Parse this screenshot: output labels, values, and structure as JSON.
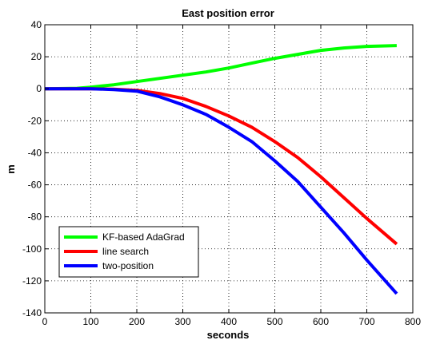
{
  "chart_data": {
    "type": "line",
    "title": "East position error",
    "xlabel": "seconds",
    "ylabel": "m",
    "xlim": [
      0,
      800
    ],
    "ylim": [
      -140,
      40
    ],
    "xticks": [
      0,
      100,
      200,
      300,
      400,
      500,
      600,
      700,
      800
    ],
    "yticks": [
      40,
      20,
      0,
      -20,
      -40,
      -60,
      -80,
      -100,
      -120,
      -140
    ],
    "grid": true,
    "legend_position": "lower-left",
    "series": [
      {
        "name": "KF-based AdaGrad",
        "color": "#00ff00",
        "x": [
          0,
          70,
          100,
          150,
          200,
          250,
          300,
          350,
          400,
          450,
          500,
          550,
          600,
          650,
          700,
          765
        ],
        "y": [
          0,
          0.3,
          1,
          2.5,
          4.5,
          6.5,
          8.5,
          10.5,
          13,
          16,
          19,
          21.5,
          24,
          25.5,
          26.5,
          27
        ]
      },
      {
        "name": "line search",
        "color": "#ff0000",
        "x": [
          0,
          100,
          150,
          200,
          250,
          300,
          350,
          400,
          450,
          500,
          550,
          600,
          650,
          700,
          765
        ],
        "y": [
          0,
          0,
          -0.3,
          -1,
          -3,
          -6,
          -11,
          -17,
          -24,
          -33,
          -43,
          -55,
          -68,
          -81,
          -97
        ]
      },
      {
        "name": "two-position",
        "color": "#0000ff",
        "x": [
          0,
          100,
          150,
          200,
          250,
          300,
          350,
          400,
          450,
          500,
          550,
          600,
          650,
          700,
          765
        ],
        "y": [
          0,
          0,
          -0.5,
          -1.5,
          -5,
          -10,
          -16,
          -24,
          -33,
          -45,
          -58,
          -74,
          -90,
          -107,
          -128
        ]
      }
    ]
  }
}
